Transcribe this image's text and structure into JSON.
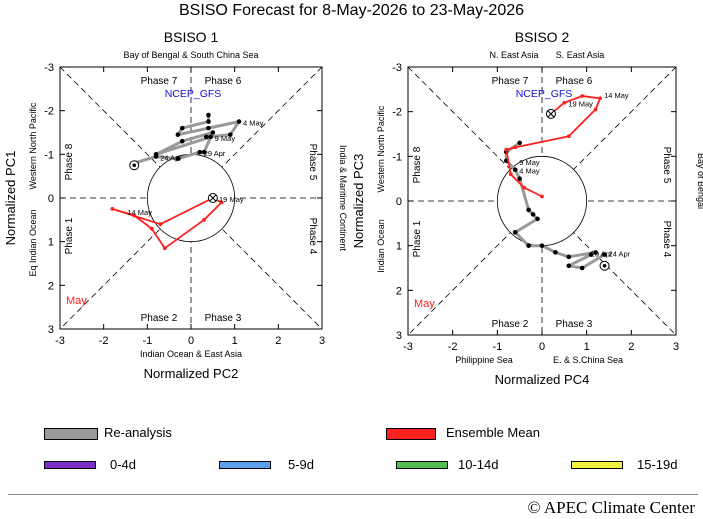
{
  "page_title": "BSISO Forecast for 8-May-2026 to 23-May-2026",
  "copyright": "© APEC Climate Center",
  "legend": {
    "reanalysis": {
      "label": "Re-analysis",
      "color": "#999999"
    },
    "ensemble_mean": {
      "label": "Ensemble Mean",
      "color": "#ff2020"
    },
    "leads": [
      {
        "label": "0-4d",
        "color": "#7b2fc9"
      },
      {
        "label": "5-9d",
        "color": "#5aa0ea"
      },
      {
        "label": "10-14d",
        "color": "#4fc04f"
      },
      {
        "label": "15-19d",
        "color": "#f0f040"
      }
    ]
  },
  "chart_data": [
    {
      "type": "line",
      "title": "BSISO 1",
      "subtitle": "Bay of Bengal & South China Sea",
      "bottom_label": "Indian Ocean & East Asia",
      "right_label": "India & Maritime Continent",
      "left_label_outer": "Eq Indian Ocean",
      "left_label_inner": "Western North Pacific",
      "model": "NCEP_GFS",
      "month_label": "May",
      "xlabel": "Normalized PC2",
      "ylabel": "Normalized PC1",
      "xlim": [
        -3,
        3
      ],
      "ylim": [
        3,
        -3
      ],
      "xticks": [
        "-3",
        "-2",
        "-1",
        "0",
        "1",
        "2",
        "3"
      ],
      "yticks": [
        "-3",
        "-2",
        "-1",
        "0",
        "1",
        "2",
        "3"
      ],
      "phases": [
        "Phase 7",
        "Phase 6",
        "Phase 8",
        "Phase 5",
        "Phase 1",
        "Phase 4",
        "Phase 2",
        "Phase 3"
      ],
      "series": [
        {
          "role": "reanalysis",
          "x": [
            -1.3,
            -0.8,
            -0.3,
            0.2,
            0.3,
            0.45,
            -0.8,
            -0.2,
            0.5,
            0.35,
            0.9,
            1.1,
            0.4,
            -0.3,
            -0.2,
            0.4,
            0.4
          ],
          "y": [
            0.8,
            0.95,
            0.9,
            1.05,
            1.05,
            1.4,
            1.0,
            1.3,
            1.5,
            1.4,
            1.45,
            1.75,
            1.6,
            1.45,
            1.6,
            1.75,
            1.9
          ]
        },
        {
          "role": "ensemble",
          "x": [
            0.5,
            0.7,
            0.3,
            -0.6,
            -0.9,
            -1.3,
            -1.8,
            -0.7,
            0.5
          ],
          "y": [
            0.0,
            -0.1,
            -0.5,
            -1.15,
            -0.7,
            -0.4,
            -0.25,
            -0.6,
            0.0
          ]
        }
      ],
      "point_labels": [
        {
          "text": "24  Apr",
          "x": -0.8,
          "y": 0.95
        },
        {
          "text": "29  Apr",
          "x": 0.2,
          "y": 1.05
        },
        {
          "text": "4  May",
          "x": 1.1,
          "y": 1.75
        },
        {
          "text": "9  May",
          "x": 0.45,
          "y": 1.4
        },
        {
          "text": "14  May",
          "x": -1.55,
          "y": -0.3
        },
        {
          "text": "19  May",
          "x": 0.55,
          "y": 0.0
        }
      ],
      "start_marker": {
        "x": -1.3,
        "y": 0.75
      },
      "end_marker": {
        "x": 0.5,
        "y": 0.0
      }
    },
    {
      "type": "line",
      "title": "BSISO 2",
      "subtitle_left": "N. East Asia",
      "subtitle_right": "S. East Asia",
      "bottom_label_left": "Philippine Sea",
      "bottom_label_right": "E. & S.China Sea",
      "right_label": "Bay of Bengal",
      "left_label_outer": "Indian Ocean",
      "left_label_inner": "Western North Pacific",
      "model": "NCEP_GFS",
      "month_label": "May",
      "xlabel": "Normalized PC4",
      "ylabel": "Normalized PC3",
      "xlim": [
        -3,
        3
      ],
      "ylim": [
        3,
        -3
      ],
      "xticks": [
        "-3",
        "-2",
        "-1",
        "0",
        "1",
        "2",
        "3"
      ],
      "yticks": [
        "-3",
        "-2",
        "-1",
        "0",
        "1",
        "2",
        "3"
      ],
      "phases": [
        "Phase 7",
        "Phase 6",
        "Phase 8",
        "Phase 5",
        "Phase 1",
        "Phase 4",
        "Phase 2",
        "Phase 3"
      ],
      "series": [
        {
          "role": "reanalysis",
          "x": [
            1.4,
            0.9,
            0.6,
            1.1,
            1.2,
            0.6,
            0.3,
            0.0,
            -0.3,
            -0.6,
            -0.1,
            -0.2,
            -0.3,
            -0.5,
            -0.6,
            -0.8,
            -0.8,
            -0.5
          ],
          "y": [
            -1.2,
            -1.5,
            -1.45,
            -1.2,
            -1.15,
            -1.25,
            -1.15,
            -1.0,
            -1.0,
            -0.7,
            -0.4,
            -0.3,
            -0.2,
            0.5,
            0.7,
            0.9,
            1.1,
            1.3
          ]
        },
        {
          "role": "ensemble",
          "x": [
            0.2,
            0.5,
            0.9,
            1.3,
            1.2,
            0.6,
            -0.6,
            -0.8,
            -0.7,
            -0.4,
            0.0
          ],
          "y": [
            1.95,
            2.2,
            2.35,
            2.3,
            2.05,
            1.45,
            1.2,
            1.15,
            0.6,
            0.3,
            0.1
          ]
        }
      ],
      "point_labels": [
        {
          "text": "24  Apr",
          "x": 1.4,
          "y": -1.15
        },
        {
          "text": "29  Apr",
          "x": 1.0,
          "y": -1.15
        },
        {
          "text": "4  May",
          "x": -0.6,
          "y": 0.7
        },
        {
          "text": "9  May",
          "x": -0.6,
          "y": 0.9
        },
        {
          "text": "14  May",
          "x": 1.3,
          "y": 2.4
        },
        {
          "text": "19  May",
          "x": 0.5,
          "y": 2.2
        }
      ],
      "start_marker": {
        "x": 1.4,
        "y": -1.45
      },
      "end_marker": {
        "x": 0.2,
        "y": 1.95
      }
    }
  ]
}
